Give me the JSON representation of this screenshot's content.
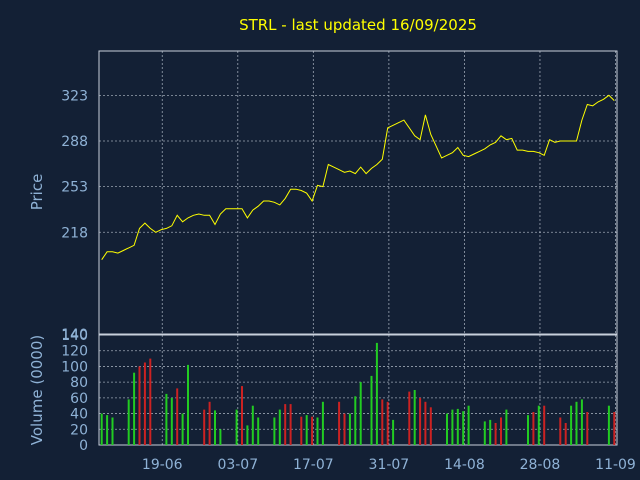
{
  "chart_data": [
    {
      "type": "line",
      "title": "STRL - last updated 16/09/2025",
      "ylabel": "Price",
      "ylim": [
        140,
        357
      ],
      "yticks": [
        "140",
        "218",
        "253",
        "288",
        "323"
      ],
      "grid": true,
      "line_color": "#ffff00",
      "series": [
        {
          "values": [
            197,
            203,
            203,
            202,
            204,
            206,
            208,
            221,
            225,
            221,
            218,
            220,
            221,
            223,
            231,
            226,
            229,
            231,
            232,
            231,
            231,
            224,
            232,
            236,
            236,
            236,
            236,
            229,
            235,
            238,
            242,
            242,
            241,
            239,
            244,
            251,
            251,
            250,
            248,
            242,
            254,
            253,
            270,
            268,
            266,
            264,
            265,
            263,
            268,
            263,
            267,
            270,
            274,
            298,
            300,
            302,
            304,
            298,
            292,
            289,
            308,
            293,
            284,
            275,
            277,
            279,
            283,
            277,
            276,
            278,
            280,
            282,
            285,
            287,
            292,
            289,
            290,
            281,
            281,
            280,
            280,
            279,
            277,
            289,
            287,
            288,
            288,
            288,
            288,
            304,
            316,
            315,
            318,
            320,
            323,
            319
          ]
        }
      ]
    },
    {
      "type": "bar",
      "ylabel": "Volume (0000)",
      "ylim": [
        0,
        140
      ],
      "yticks": [
        "0",
        "20",
        "40",
        "60",
        "80",
        "100",
        "120",
        "140"
      ],
      "xticks": [
        "19-06",
        "03-07",
        "17-07",
        "31-07",
        "14-08",
        "28-08",
        "11-09"
      ],
      "grid": true,
      "up_color": "#22cc22",
      "down_color": "#cc2222",
      "values": [
        40,
        38,
        35,
        0,
        0,
        58,
        92,
        100,
        105,
        110,
        0,
        0,
        65,
        60,
        72,
        40,
        102,
        0,
        0,
        45,
        55,
        44,
        20,
        0,
        0,
        45,
        75,
        25,
        50,
        35,
        0,
        0,
        35,
        45,
        52,
        52,
        0,
        36,
        38,
        36,
        35,
        55,
        0,
        0,
        55,
        40,
        40,
        62,
        80,
        0,
        88,
        130,
        58,
        55,
        32,
        0,
        0,
        68,
        70,
        60,
        55,
        48,
        0,
        0,
        40,
        45,
        46,
        43,
        50,
        0,
        0,
        30,
        32,
        28,
        35,
        45,
        0,
        0,
        0,
        38,
        42,
        50,
        50,
        0,
        0,
        35,
        28,
        50,
        55,
        58,
        42,
        0,
        0,
        0,
        50,
        42
      ],
      "up": [
        1,
        1,
        1,
        0,
        0,
        1,
        1,
        0,
        0,
        0,
        0,
        0,
        1,
        1,
        0,
        1,
        1,
        0,
        0,
        0,
        0,
        1,
        1,
        0,
        0,
        1,
        0,
        1,
        1,
        1,
        0,
        0,
        1,
        1,
        0,
        0,
        0,
        0,
        1,
        0,
        1,
        1,
        0,
        0,
        0,
        0,
        1,
        1,
        1,
        0,
        1,
        1,
        0,
        0,
        1,
        0,
        0,
        0,
        1,
        0,
        0,
        0,
        0,
        0,
        1,
        1,
        1,
        1,
        1,
        0,
        0,
        1,
        1,
        0,
        0,
        1,
        0,
        0,
        0,
        1,
        0,
        1,
        0,
        0,
        0,
        0,
        0,
        1,
        1,
        1,
        0,
        0,
        0,
        0,
        1,
        0
      ]
    }
  ]
}
